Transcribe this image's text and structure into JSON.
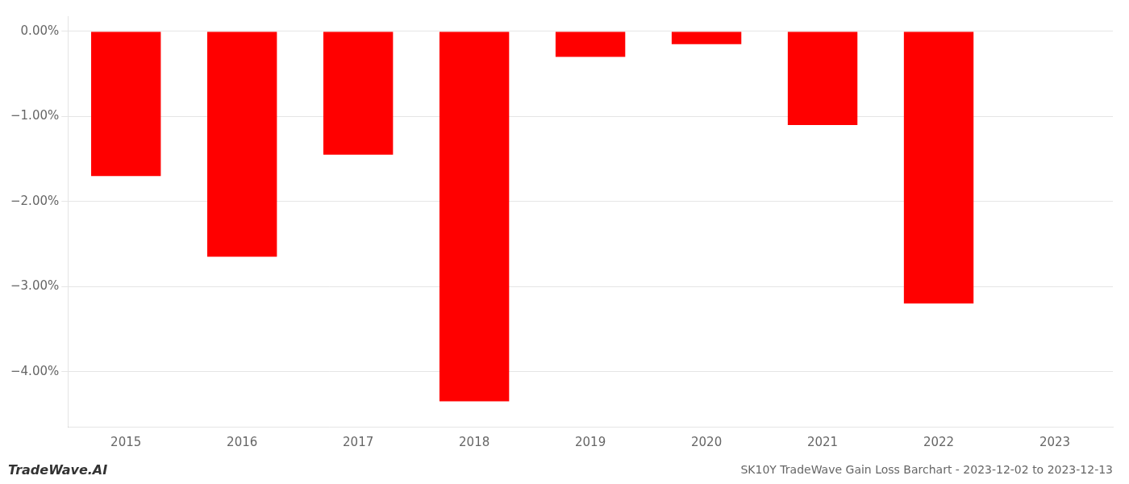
{
  "chart_data": {
    "type": "bar",
    "title": "SK10Y TradeWave Gain Loss Barchart - 2023-12-02 to 2023-12-13",
    "annotations": [
      "TradeWave.AI"
    ],
    "categories": [
      "2015",
      "2016",
      "2017",
      "2018",
      "2019",
      "2020",
      "2021",
      "2022",
      "2023"
    ],
    "values": [
      -1.7,
      -2.65,
      -1.45,
      -4.35,
      -0.3,
      -0.15,
      -1.1,
      -3.2,
      null
    ],
    "color": "#ff0000",
    "ylim": [
      -4.65,
      0.18
    ],
    "yticks": [
      {
        "value": 0.0,
        "label": "0.00%"
      },
      {
        "value": -1.0,
        "label": "−1.00%"
      },
      {
        "value": -2.0,
        "label": "−2.00%"
      },
      {
        "value": -3.0,
        "label": "−3.00%"
      },
      {
        "value": -4.0,
        "label": "−4.00%"
      }
    ],
    "grid": true
  }
}
